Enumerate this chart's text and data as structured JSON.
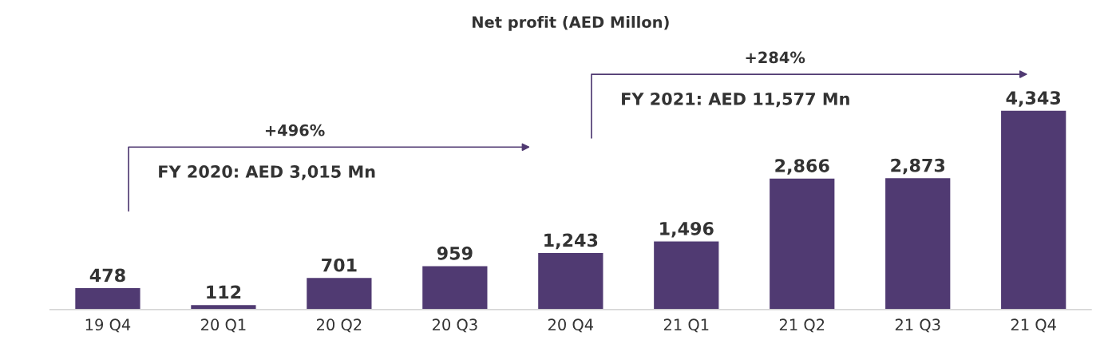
{
  "chart_data": {
    "type": "bar",
    "title": "Net profit (AED Millon)",
    "categories": [
      "19 Q4",
      "20 Q1",
      "20 Q2",
      "20 Q3",
      "20 Q4",
      "21 Q1",
      "21 Q2",
      "21 Q3",
      "21 Q4"
    ],
    "values": [
      478,
      112,
      701,
      959,
      1243,
      1496,
      2866,
      2873,
      4343
    ],
    "value_labels": [
      "478",
      "112",
      "701",
      "959",
      "1,243",
      "1,496",
      "2,866",
      "2,873",
      "4,343"
    ],
    "color": "#503a72",
    "annotations": [
      "+496%",
      "FY 2020: AED 3,015 Mn",
      "+284%",
      "FY 2021: AED 11,577 Mn"
    ]
  }
}
